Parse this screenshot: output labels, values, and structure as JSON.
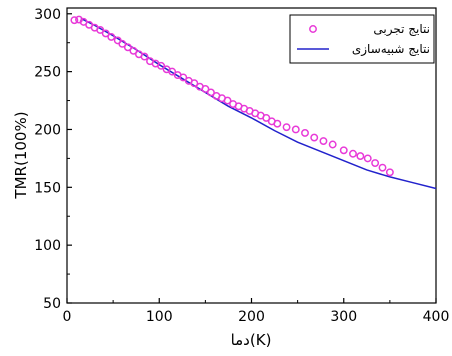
{
  "chart_data": {
    "type": "scatter",
    "xlabel": "دما(K)",
    "ylabel": "TMR(100%)",
    "xlim": [
      0,
      400
    ],
    "ylim": [
      50,
      305
    ],
    "xticks": [
      0,
      100,
      200,
      300,
      400
    ],
    "yticks": [
      50,
      100,
      150,
      200,
      250,
      300
    ],
    "xtick_labels": [
      "0",
      "100",
      "200",
      "300",
      "400"
    ],
    "ytick_labels": [
      "50",
      "100",
      "150",
      "200",
      "250",
      "300"
    ],
    "grid": false,
    "legend_position": "top-right",
    "series": [
      {
        "name": "نتایج تجربی",
        "type": "scatter",
        "marker": "open-circle",
        "color": "#e83ad8",
        "points": [
          [
            8,
            294.5
          ],
          [
            13,
            295
          ],
          [
            18,
            293
          ],
          [
            24,
            290.5
          ],
          [
            30,
            288
          ],
          [
            36,
            286
          ],
          [
            42,
            283
          ],
          [
            48,
            280
          ],
          [
            55,
            277
          ],
          [
            60,
            274
          ],
          [
            66,
            271
          ],
          [
            72,
            268
          ],
          [
            78,
            265
          ],
          [
            84,
            263
          ],
          [
            90,
            259
          ],
          [
            96,
            257
          ],
          [
            102,
            255
          ],
          [
            108,
            252
          ],
          [
            114,
            250
          ],
          [
            120,
            247
          ],
          [
            126,
            245
          ],
          [
            132,
            242
          ],
          [
            138,
            240
          ],
          [
            144,
            237
          ],
          [
            150,
            235
          ],
          [
            156,
            232
          ],
          [
            162,
            229
          ],
          [
            168,
            227
          ],
          [
            174,
            225
          ],
          [
            180,
            222
          ],
          [
            186,
            220
          ],
          [
            192,
            218
          ],
          [
            198,
            216
          ],
          [
            204,
            214
          ],
          [
            210,
            212
          ],
          [
            216,
            210
          ],
          [
            222,
            207
          ],
          [
            228,
            205
          ],
          [
            238,
            202
          ],
          [
            248,
            200
          ],
          [
            258,
            197
          ],
          [
            268,
            193
          ],
          [
            278,
            190
          ],
          [
            288,
            187
          ],
          [
            300,
            182
          ],
          [
            310,
            179
          ],
          [
            318,
            177
          ],
          [
            326,
            175
          ],
          [
            334,
            171
          ],
          [
            342,
            167
          ],
          [
            350,
            163
          ]
        ]
      },
      {
        "name": "نتایج شبیه‌سازی",
        "type": "line",
        "color": "#2222cc",
        "points": [
          [
            15,
            296
          ],
          [
            30,
            290
          ],
          [
            50,
            281
          ],
          [
            75,
            269
          ],
          [
            100,
            256
          ],
          [
            125,
            244
          ],
          [
            150,
            232
          ],
          [
            175,
            220
          ],
          [
            200,
            210
          ],
          [
            225,
            199
          ],
          [
            250,
            189
          ],
          [
            275,
            181
          ],
          [
            300,
            173
          ],
          [
            325,
            165
          ],
          [
            350,
            159
          ],
          [
            375,
            154
          ],
          [
            400,
            149
          ]
        ]
      }
    ]
  }
}
